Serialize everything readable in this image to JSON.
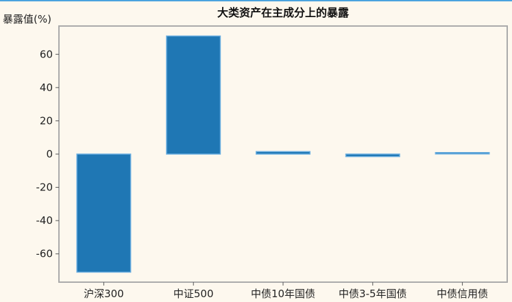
{
  "chart_data": {
    "type": "bar",
    "title": "大类资产在主成分上的暴露",
    "ylabel": "暴露值(%)",
    "xlabel": "",
    "categories": [
      "沪深300",
      "中证500",
      "中债10年国债",
      "中债3-5年国债",
      "中债信用债"
    ],
    "values": [
      -71,
      71,
      1.5,
      -1.5,
      0.5
    ],
    "ylim": [
      -77,
      77
    ],
    "yticks": [
      -60,
      -40,
      -20,
      0,
      20,
      40,
      60
    ],
    "ytick_labels": [
      "-60",
      "-40",
      "-20",
      "0",
      "20",
      "40",
      "60"
    ],
    "grid": false,
    "legend": "none",
    "colors": {
      "bar": "#1f77b4",
      "bar_edge": "#6aaee0",
      "axes": "#aaaaaa",
      "background": "#fdf8ee",
      "top_rule": "#4aa3df"
    }
  }
}
